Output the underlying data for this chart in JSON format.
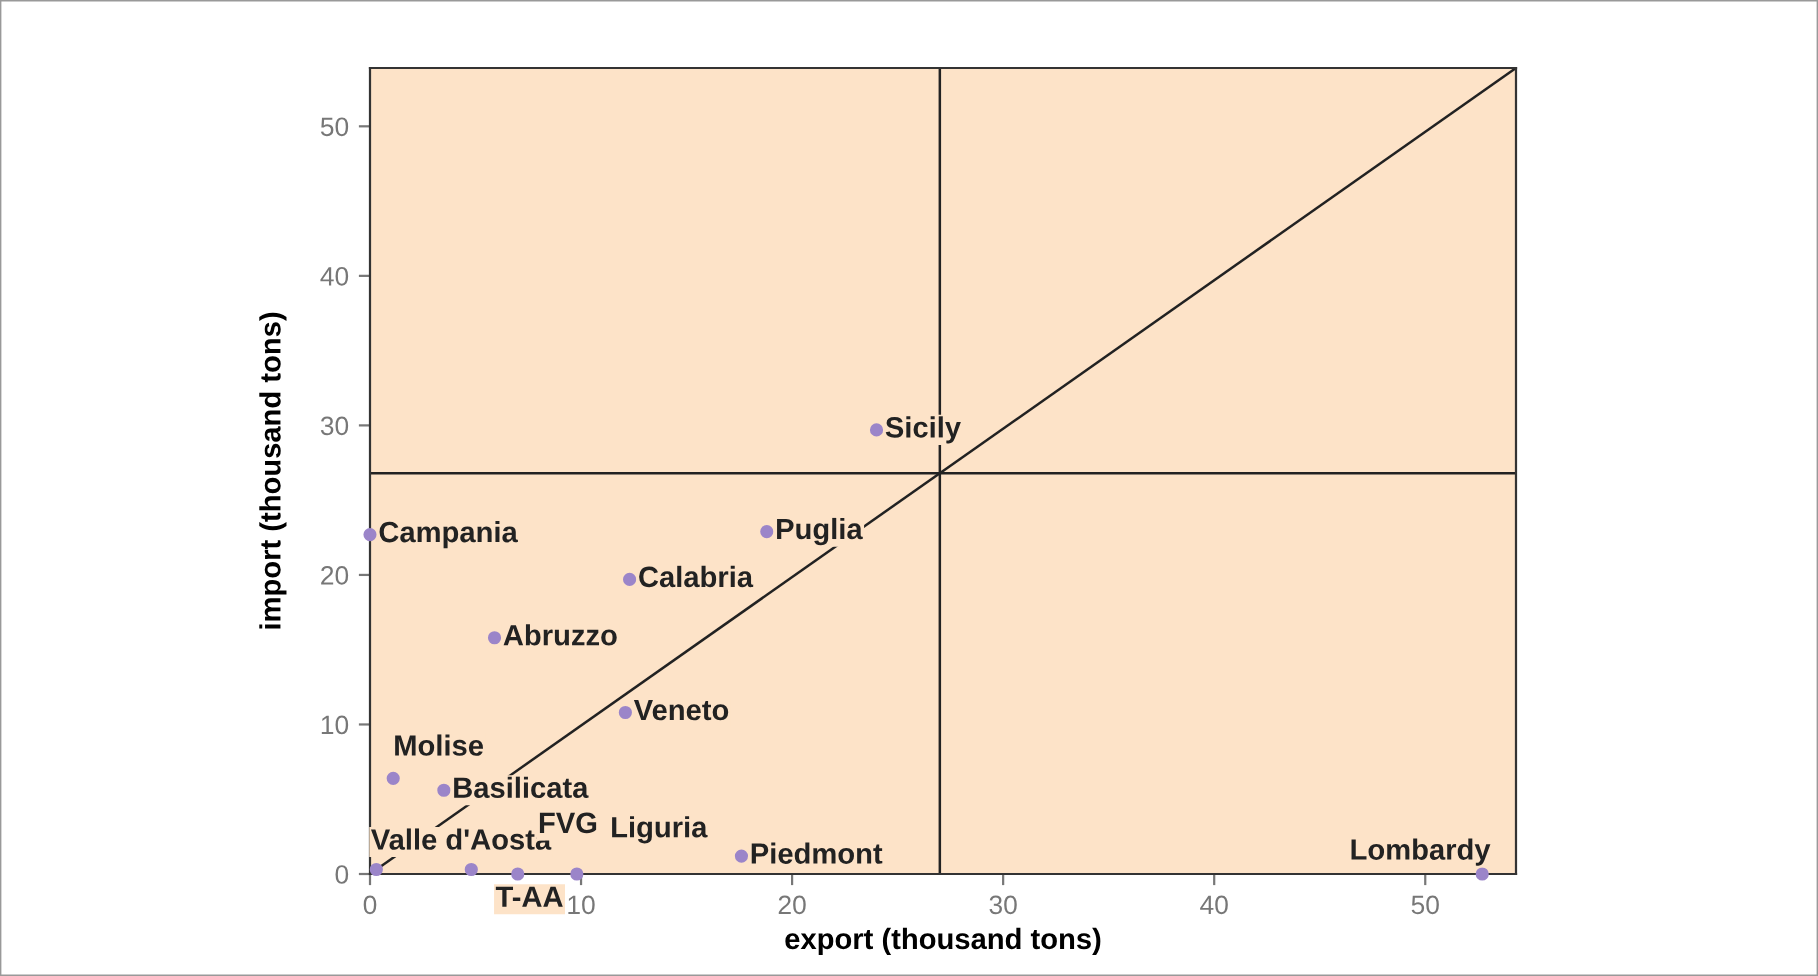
{
  "chart_data": {
    "type": "scatter",
    "xlabel": "export (thousand tons)",
    "ylabel": "import (thousand tons)",
    "xlim": [
      0,
      54.3
    ],
    "ylim": [
      0,
      53.9
    ],
    "xticks": [
      0,
      10,
      20,
      30,
      40,
      50
    ],
    "yticks": [
      0,
      10,
      20,
      30,
      40,
      50
    ],
    "grid": false,
    "legend": false,
    "marker": "circle",
    "series": [
      {
        "color": "#9b85c9",
        "x": [
          24,
          18.8,
          0,
          12.3,
          5.9,
          12.1,
          1.1,
          3.5,
          0.3,
          7.0,
          4.8,
          9.8,
          17.6,
          52.7
        ],
        "values": [
          29.7,
          22.9,
          22.7,
          19.7,
          15.8,
          10.8,
          6.4,
          5.6,
          0.3,
          0,
          0.3,
          0,
          1.2,
          0
        ]
      },
      {
        "type": "line",
        "marker": "none",
        "color": "#222222",
        "x": [
          0,
          54.3
        ],
        "values": [
          0,
          53.9
        ]
      }
    ],
    "annotations": [
      {
        "text": "Sicily",
        "x": 24,
        "y": 29.7
      },
      {
        "text": "Puglia",
        "x": 18.8,
        "y": 22.9
      },
      {
        "text": "Campania",
        "x": 0,
        "y": 22.7
      },
      {
        "text": "Calabria",
        "x": 12.3,
        "y": 19.7
      },
      {
        "text": "Abruzzo",
        "x": 5.9,
        "y": 15.8
      },
      {
        "text": "Veneto",
        "x": 12.1,
        "y": 10.8
      },
      {
        "text": "Molise",
        "x": 1.1,
        "y": 6.4
      },
      {
        "text": "Basilicata",
        "x": 3.5,
        "y": 5.6
      },
      {
        "text": "Valle d'Aosta",
        "x": 0.3,
        "y": 0.3
      },
      {
        "text": "T-AA",
        "x": 7.0,
        "y": 0
      },
      {
        "text": "FVG",
        "x": 4.8,
        "y": 0.3
      },
      {
        "text": "Liguria",
        "x": 9.8,
        "y": 0
      },
      {
        "text": "Piedmont",
        "x": 17.6,
        "y": 1.2
      },
      {
        "text": "Lombardy",
        "x": 52.7,
        "y": 0
      }
    ],
    "ref_lines": [
      {
        "axis": "x",
        "value": 27,
        "color": "#222222"
      },
      {
        "axis": "y",
        "value": 26.8,
        "color": "#222222"
      }
    ]
  }
}
